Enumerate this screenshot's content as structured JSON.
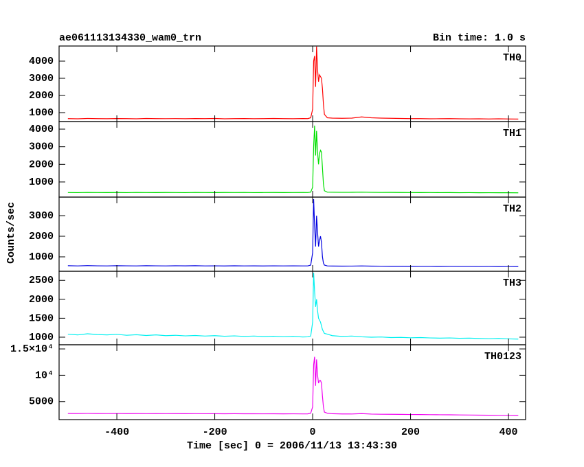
{
  "chart_data": [
    {
      "type": "line",
      "title": "ae061113134330_wam0_trn",
      "subtitle": "Bin time: 1.0 s",
      "x": [
        -500,
        -480,
        -460,
        -440,
        -420,
        -400,
        -380,
        -360,
        -340,
        -320,
        -300,
        -280,
        -260,
        -240,
        -220,
        -200,
        -180,
        -160,
        -140,
        -120,
        -100,
        -80,
        -60,
        -40,
        -20,
        -10,
        -4,
        0,
        2,
        4,
        6,
        8,
        10,
        12,
        14,
        16,
        18,
        20,
        22,
        24,
        30,
        40,
        60,
        80,
        100,
        120,
        140,
        160,
        180,
        200,
        220,
        240,
        260,
        280,
        300,
        320,
        340,
        360,
        380,
        400,
        420
      ],
      "xlim": [
        -518,
        435
      ],
      "xticks": [
        -400,
        -200,
        0,
        200,
        400
      ],
      "ylim": [
        480,
        4880
      ],
      "yticks": [
        1000,
        2000,
        3000,
        4000
      ],
      "series": [
        {
          "name": "TH0",
          "color": "#ff0000",
          "values": [
            650,
            640,
            660,
            650,
            645,
            655,
            650,
            640,
            660,
            650,
            648,
            652,
            645,
            655,
            650,
            660,
            640,
            650,
            655,
            645,
            650,
            660,
            650,
            645,
            655,
            650,
            700,
            1200,
            4000,
            4300,
            2500,
            4850,
            3500,
            2800,
            3200,
            3100,
            3000,
            2400,
            1500,
            900,
            700,
            680,
            670,
            680,
            750,
            700,
            680,
            670,
            660,
            650,
            650,
            640,
            645,
            650,
            640,
            635,
            640,
            630,
            640,
            630,
            625
          ]
        }
      ]
    },
    {
      "type": "line",
      "x": [
        -500,
        -480,
        -460,
        -440,
        -420,
        -400,
        -380,
        -360,
        -340,
        -320,
        -300,
        -280,
        -260,
        -240,
        -220,
        -200,
        -180,
        -160,
        -140,
        -120,
        -100,
        -80,
        -60,
        -40,
        -20,
        -10,
        -4,
        0,
        2,
        4,
        6,
        8,
        10,
        12,
        14,
        16,
        18,
        20,
        22,
        24,
        30,
        40,
        60,
        80,
        100,
        120,
        140,
        160,
        180,
        200,
        220,
        240,
        260,
        280,
        300,
        320,
        340,
        360,
        380,
        400,
        420
      ],
      "xlim": [
        -518,
        435
      ],
      "xticks": [
        -400,
        -200,
        0,
        200,
        400
      ],
      "ylim": [
        140,
        4430
      ],
      "yticks": [
        1000,
        2000,
        3000,
        4000
      ],
      "series": [
        {
          "name": "TH1",
          "color": "#00e000",
          "values": [
            400,
            395,
            405,
            400,
            398,
            402,
            395,
            405,
            400,
            398,
            402,
            400,
            395,
            405,
            400,
            398,
            402,
            400,
            405,
            395,
            400,
            402,
            398,
            400,
            405,
            400,
            420,
            700,
            3000,
            4200,
            2500,
            3900,
            2700,
            2000,
            2600,
            2800,
            2700,
            1800,
            900,
            500,
            420,
            415,
            410,
            412,
            420,
            410,
            405,
            408,
            402,
            400,
            398,
            400,
            395,
            398,
            392,
            395,
            390,
            392,
            388,
            390,
            385
          ]
        }
      ]
    },
    {
      "type": "line",
      "ylabel": "Counts/sec",
      "x": [
        -500,
        -480,
        -460,
        -440,
        -420,
        -400,
        -380,
        -360,
        -340,
        -320,
        -300,
        -280,
        -260,
        -240,
        -220,
        -200,
        -180,
        -160,
        -140,
        -120,
        -100,
        -80,
        -60,
        -40,
        -20,
        -10,
        -4,
        0,
        2,
        4,
        6,
        8,
        10,
        12,
        14,
        16,
        18,
        20,
        22,
        24,
        30,
        40,
        60,
        80,
        100,
        120,
        140,
        160,
        180,
        200,
        220,
        240,
        260,
        280,
        300,
        320,
        340,
        360,
        380,
        400,
        420
      ],
      "xlim": [
        -518,
        435
      ],
      "xticks": [
        -400,
        -200,
        0,
        200,
        400
      ],
      "ylim": [
        300,
        3900
      ],
      "yticks": [
        1000,
        2000,
        3000
      ],
      "series": [
        {
          "name": "TH2",
          "color": "#0000e0",
          "values": [
            570,
            560,
            575,
            565,
            560,
            570,
            565,
            560,
            572,
            565,
            560,
            568,
            562,
            570,
            560,
            565,
            558,
            566,
            560,
            562,
            558,
            565,
            560,
            562,
            560,
            560,
            600,
            1200,
            3800,
            2500,
            1500,
            3000,
            2200,
            1500,
            1800,
            2000,
            1700,
            1000,
            700,
            600,
            560,
            555,
            550,
            552,
            560,
            550,
            548,
            545,
            545,
            542,
            540,
            540,
            538,
            540,
            535,
            536,
            532,
            535,
            530,
            532,
            530
          ]
        }
      ]
    },
    {
      "type": "line",
      "x": [
        -500,
        -480,
        -460,
        -440,
        -420,
        -400,
        -380,
        -360,
        -340,
        -320,
        -300,
        -280,
        -260,
        -240,
        -220,
        -200,
        -180,
        -160,
        -140,
        -120,
        -100,
        -80,
        -60,
        -40,
        -20,
        -10,
        -4,
        0,
        2,
        4,
        6,
        8,
        10,
        12,
        14,
        16,
        18,
        20,
        22,
        24,
        30,
        40,
        60,
        80,
        100,
        120,
        140,
        160,
        180,
        200,
        220,
        240,
        260,
        280,
        300,
        320,
        340,
        360,
        380,
        400,
        420
      ],
      "xlim": [
        -518,
        435
      ],
      "xticks": [
        -400,
        -200,
        0,
        200,
        400
      ],
      "ylim": [
        800,
        2740
      ],
      "yticks": [
        1000,
        1500,
        2000,
        2500
      ],
      "series": [
        {
          "name": "TH3",
          "color": "#00f0f0",
          "values": [
            1080,
            1060,
            1090,
            1070,
            1060,
            1075,
            1050,
            1065,
            1045,
            1060,
            1040,
            1050,
            1035,
            1045,
            1030,
            1040,
            1025,
            1035,
            1020,
            1030,
            1015,
            1025,
            1010,
            1020,
            1005,
            1010,
            1030,
            1400,
            2700,
            2200,
            1800,
            2000,
            1700,
            1500,
            1450,
            1400,
            1300,
            1200,
            1150,
            1100,
            1080,
            1040,
            1020,
            1030,
            1010,
            1000,
            1005,
            990,
            995,
            985,
            990,
            980,
            975,
            980,
            970,
            975,
            965,
            960,
            965,
            955,
            950
          ]
        }
      ]
    },
    {
      "type": "line",
      "xlabel": "Time [sec] 0 = 2006/11/13 13:43:30",
      "x": [
        -500,
        -480,
        -460,
        -440,
        -420,
        -400,
        -380,
        -360,
        -340,
        -320,
        -300,
        -280,
        -260,
        -240,
        -220,
        -200,
        -180,
        -160,
        -140,
        -120,
        -100,
        -80,
        -60,
        -40,
        -20,
        -10,
        -4,
        0,
        2,
        4,
        6,
        8,
        10,
        12,
        14,
        16,
        18,
        20,
        22,
        24,
        30,
        40,
        60,
        80,
        100,
        120,
        140,
        160,
        180,
        200,
        220,
        240,
        260,
        280,
        300,
        320,
        340,
        360,
        380,
        400,
        420
      ],
      "xlim": [
        -518,
        435
      ],
      "xticks": [
        -400,
        -200,
        0,
        200,
        400
      ],
      "ylim": [
        1580,
        15790
      ],
      "yticks": [
        5000,
        {
          "value": 10000,
          "label": "10⁴"
        },
        {
          "value": 15000,
          "label": "1.5×10⁴"
        }
      ],
      "series": [
        {
          "name": "TH0123",
          "color": "#f000f0",
          "values": [
            2750,
            2740,
            2760,
            2740,
            2730,
            2745,
            2720,
            2735,
            2715,
            2725,
            2710,
            2720,
            2700,
            2710,
            2695,
            2705,
            2690,
            2700,
            2685,
            2690,
            2680,
            2690,
            2670,
            2680,
            2665,
            2670,
            2800,
            4000,
            12000,
            13500,
            8000,
            13000,
            10000,
            8500,
            9000,
            9000,
            8500,
            6000,
            4000,
            3000,
            2800,
            2700,
            2660,
            2650,
            2720,
            2630,
            2600,
            2590,
            2570,
            2550,
            2540,
            2520,
            2500,
            2490,
            2470,
            2450,
            2430,
            2410,
            2390,
            2370,
            2350
          ]
        }
      ]
    }
  ]
}
